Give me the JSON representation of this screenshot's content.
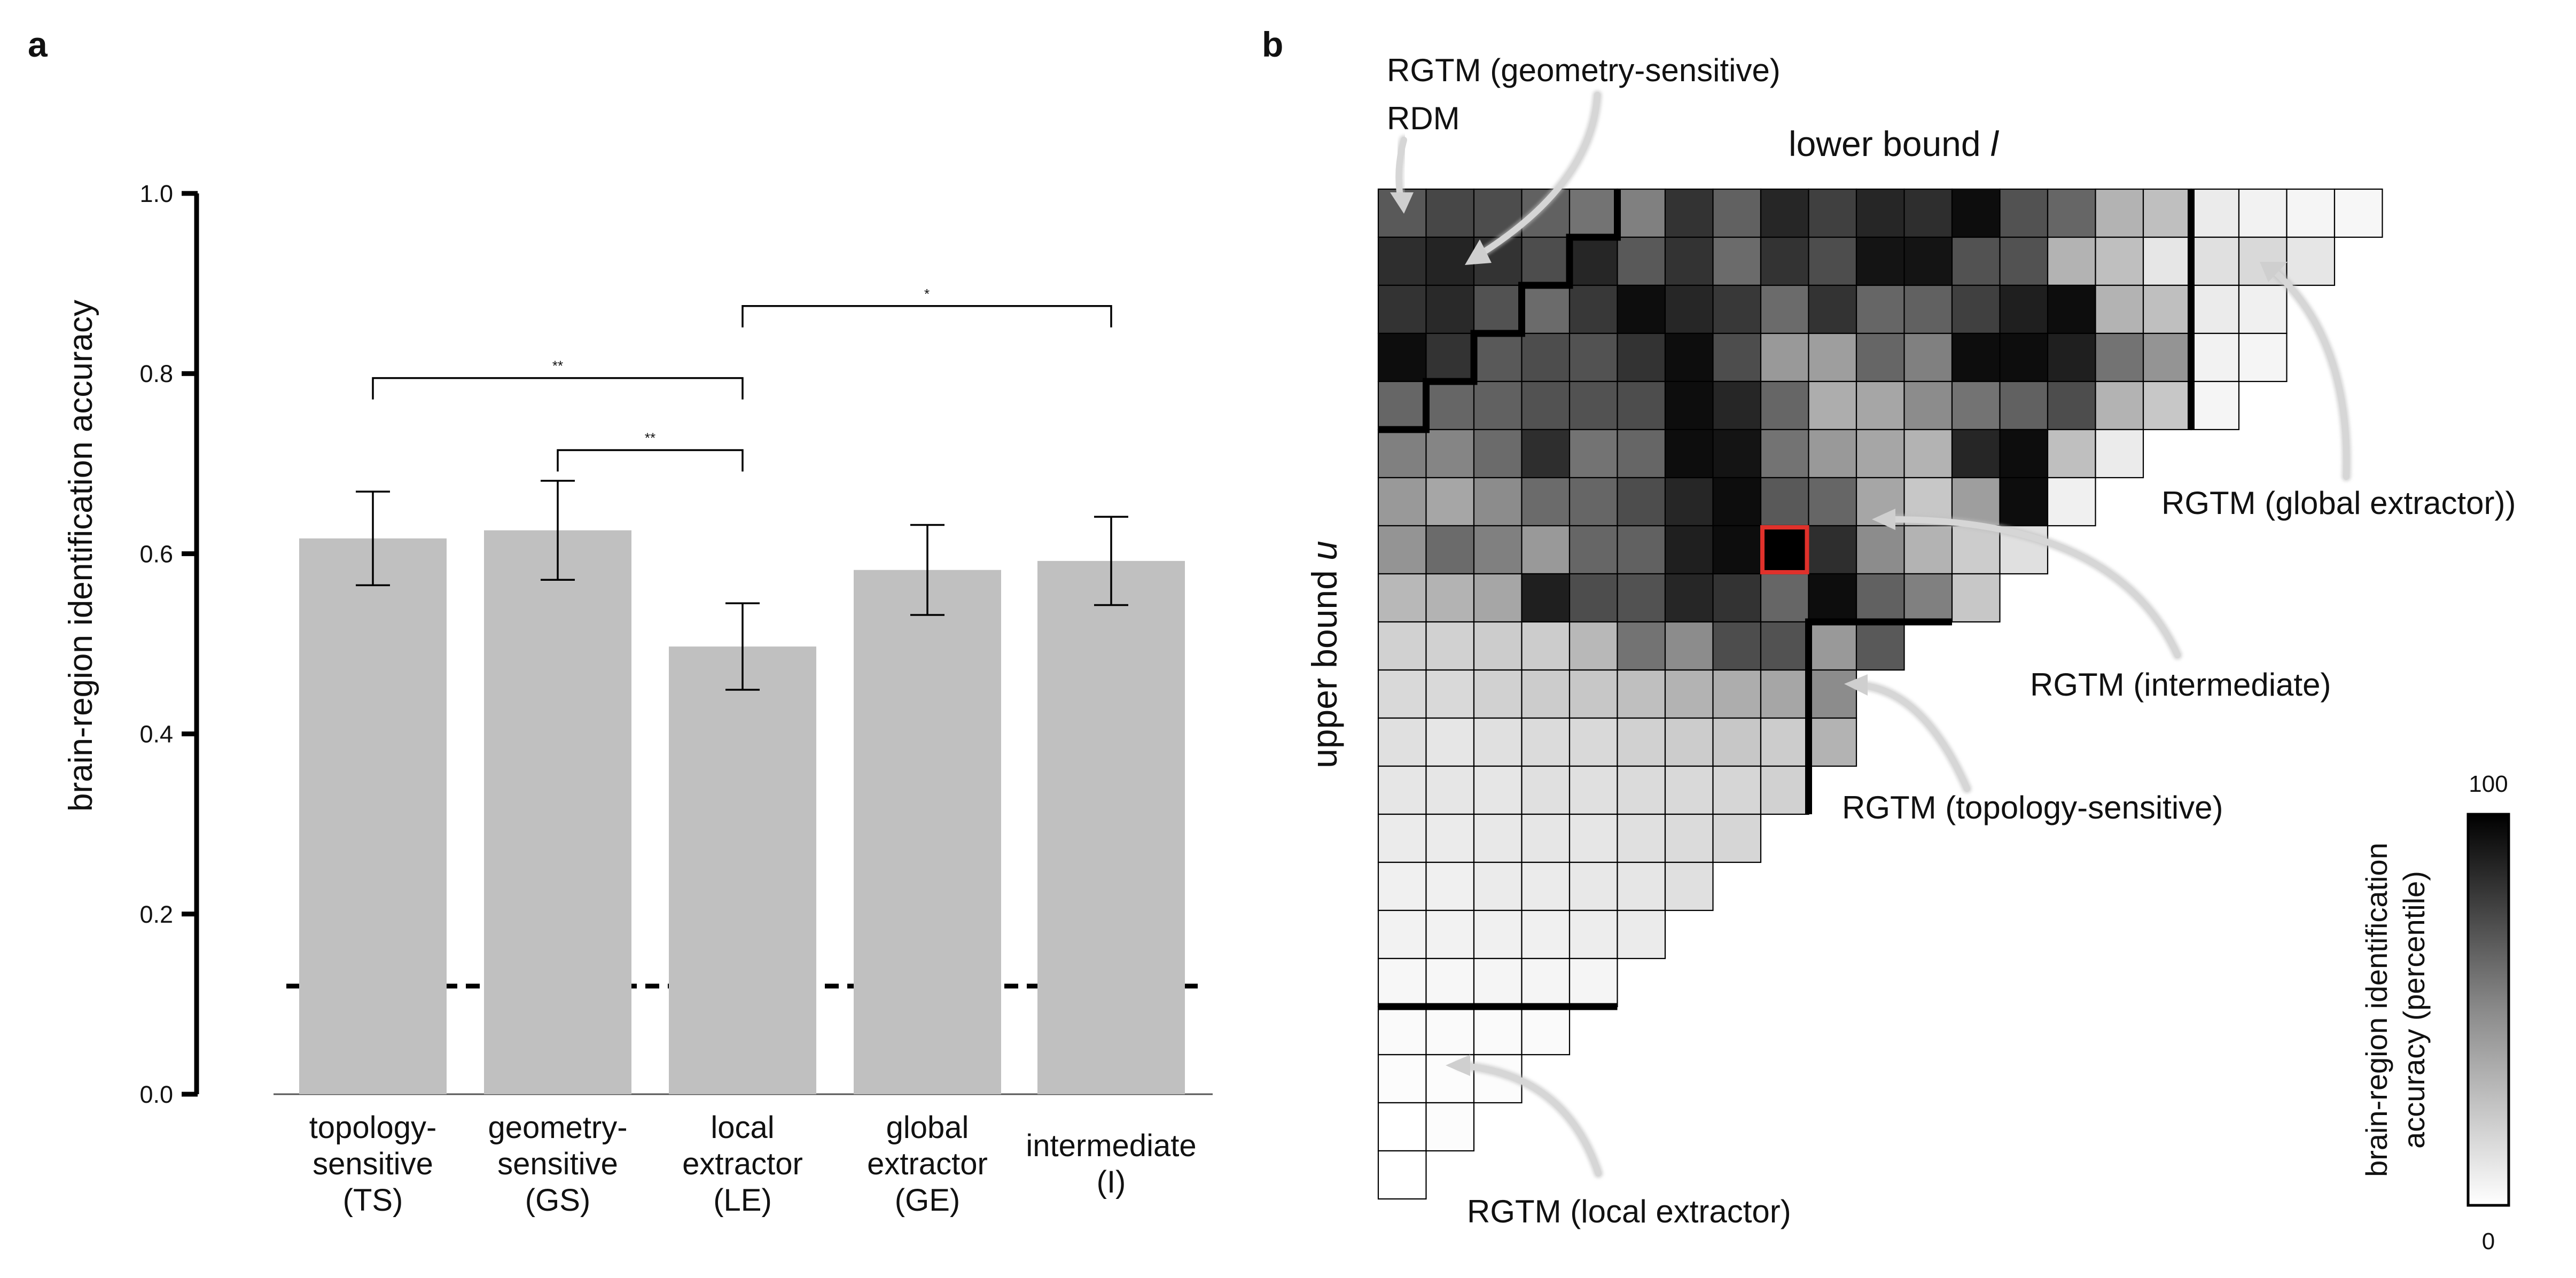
{
  "panels": {
    "a": "a",
    "b": "b"
  },
  "chart_data": [
    {
      "type": "bar",
      "panel": "a",
      "ylabel": "brain-region identification accuracy",
      "ylim": [
        0,
        1
      ],
      "yticks": [
        0.0,
        0.2,
        0.4,
        0.6,
        0.8,
        1.0
      ],
      "ytick_labels": [
        "0.0",
        "0.2",
        "0.4",
        "0.6",
        "0.8",
        "1.0"
      ],
      "categories": [
        [
          "topology-",
          "sensitive",
          "(TS)"
        ],
        [
          "geometry-",
          "sensitive",
          "(GS)"
        ],
        [
          "local",
          "extractor",
          "(LE)"
        ],
        [
          "global",
          "extractor",
          "(GE)"
        ],
        [
          "intermediate",
          "(I)"
        ]
      ],
      "values": [
        0.617,
        0.626,
        0.497,
        0.582,
        0.592
      ],
      "errors": [
        0.052,
        0.055,
        0.048,
        0.05,
        0.049
      ],
      "chance_level": 0.12,
      "bar_color": "#c0c0c0",
      "significance": [
        {
          "from": 0,
          "to": 2,
          "y": 0.795,
          "label": "**"
        },
        {
          "from": 1,
          "to": 2,
          "y": 0.715,
          "label": "**"
        },
        {
          "from": 2,
          "to": 4,
          "y": 0.875,
          "label": "*"
        }
      ]
    },
    {
      "type": "heatmap",
      "panel": "b",
      "xlabel": "lower bound l",
      "xlabel_text": "lower bound ",
      "xlabel_var": "l",
      "ylabel": "upper bound u",
      "ylabel_text": "upper bound ",
      "ylabel_var": "u",
      "n": 21,
      "row_lengths": [
        21,
        20,
        19,
        19,
        18,
        16,
        15,
        14,
        13,
        11,
        10,
        10,
        9,
        8,
        7,
        6,
        5,
        4,
        3,
        2,
        1
      ],
      "values_percentile": [
        [
          65,
          72,
          70,
          62,
          55,
          50,
          80,
          62,
          85,
          75,
          85,
          82,
          95,
          68,
          60,
          30,
          25,
          8,
          5,
          4,
          3
        ],
        [
          82,
          86,
          80,
          70,
          85,
          65,
          80,
          58,
          80,
          70,
          92,
          92,
          68,
          68,
          30,
          25,
          10,
          12,
          15,
          10
        ],
        [
          80,
          84,
          68,
          58,
          78,
          95,
          85,
          78,
          58,
          80,
          60,
          62,
          75,
          88,
          95,
          30,
          25,
          8,
          6
        ],
        [
          95,
          80,
          65,
          70,
          68,
          80,
          95,
          70,
          40,
          38,
          60,
          50,
          95,
          95,
          88,
          55,
          42,
          5,
          4
        ],
        [
          60,
          60,
          62,
          68,
          68,
          70,
          95,
          85,
          60,
          32,
          35,
          45,
          55,
          62,
          70,
          30,
          22,
          4
        ],
        [
          50,
          48,
          58,
          82,
          55,
          60,
          95,
          92,
          55,
          40,
          35,
          30,
          85,
          95,
          25,
          8
        ],
        [
          40,
          35,
          45,
          58,
          60,
          70,
          85,
          95,
          65,
          60,
          35,
          22,
          38,
          95,
          6
        ],
        [
          42,
          58,
          50,
          40,
          60,
          62,
          88,
          95,
          100,
          82,
          45,
          30,
          20,
          12
        ],
        [
          28,
          30,
          35,
          88,
          70,
          68,
          85,
          80,
          60,
          95,
          62,
          50,
          22
        ],
        [
          18,
          18,
          20,
          20,
          28,
          55,
          45,
          70,
          68,
          40,
          65
        ],
        [
          15,
          15,
          18,
          20,
          22,
          25,
          30,
          32,
          35,
          45
        ],
        [
          12,
          10,
          12,
          14,
          15,
          18,
          20,
          22,
          20,
          30
        ],
        [
          10,
          10,
          10,
          12,
          12,
          14,
          15,
          16,
          18
        ],
        [
          8,
          8,
          9,
          10,
          10,
          12,
          14,
          16
        ],
        [
          6,
          6,
          8,
          8,
          9,
          10,
          12
        ],
        [
          5,
          5,
          6,
          6,
          7,
          8
        ],
        [
          3,
          3,
          4,
          4,
          4
        ],
        [
          2,
          2,
          2,
          2
        ],
        [
          1,
          1,
          1
        ],
        [
          0,
          1
        ],
        [
          0
        ]
      ],
      "highlight_cell": {
        "row": 7,
        "col": 8,
        "color": "#e0312b"
      },
      "colorbar": {
        "min": "0",
        "max": "100",
        "label": [
          "brain-region identification",
          "accuracy (percentile)"
        ]
      },
      "annotations": {
        "rdm": "RDM",
        "gs": "RGTM (geometry-sensitive)",
        "ge": "RGTM (global extractor))",
        "intermediate": "RGTM (intermediate)",
        "ts": "RGTM (topology-sensitive)",
        "le": "RGTM (local extractor)"
      }
    }
  ]
}
